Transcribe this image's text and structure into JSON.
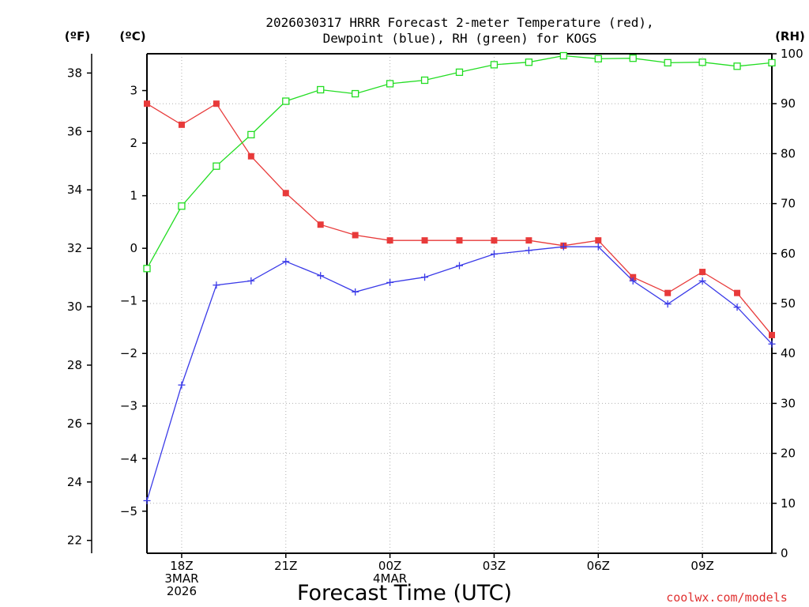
{
  "chart_data": {
    "type": "line",
    "title_lines": [
      "2026030317 HRRR Forecast 2-meter Temperature (red),",
      "Dewpoint (blue), RH (green) for KOGS"
    ],
    "left_outer_unit": "(ºF)",
    "left_inner_unit": "(ºC)",
    "right_unit": "(RH)",
    "xlabel": "Forecast Time (UTC)",
    "credit": "coolwx.com/models",
    "x_hours": [
      17,
      18,
      19,
      20,
      21,
      22,
      23,
      24,
      25,
      26,
      27,
      28,
      29,
      30,
      31,
      32,
      33,
      34,
      35
    ],
    "xlim": [
      17,
      35
    ],
    "x_ticks": [
      {
        "hour": 18,
        "lines": [
          "18Z",
          "3MAR",
          "2026"
        ]
      },
      {
        "hour": 21,
        "lines": [
          "21Z"
        ]
      },
      {
        "hour": 24,
        "lines": [
          "00Z",
          "4MAR"
        ]
      },
      {
        "hour": 27,
        "lines": [
          "03Z"
        ]
      },
      {
        "hour": 30,
        "lines": [
          "06Z"
        ]
      },
      {
        "hour": 33,
        "lines": [
          "09Z"
        ]
      }
    ],
    "celsius_axis": {
      "ylim": [
        -5.8,
        3.7
      ],
      "ticks": [
        3,
        2,
        1,
        0,
        -1,
        -2,
        -3,
        -4,
        -5
      ],
      "tick_labels": [
        "3",
        "2",
        "1",
        "0",
        "−1",
        "−2",
        "−3",
        "−4",
        "−5"
      ]
    },
    "fahrenheit_axis": {
      "ticks": [
        38,
        36,
        34,
        32,
        30,
        28,
        26,
        24,
        22
      ],
      "tick_labels": [
        "38",
        "36",
        "34",
        "32",
        "30",
        "28",
        "26",
        "24",
        "22"
      ]
    },
    "rh_axis": {
      "ylim": [
        0,
        100
      ],
      "ticks": [
        100,
        90,
        80,
        70,
        60,
        50,
        40,
        30,
        20,
        10,
        0
      ],
      "tick_labels": [
        "100",
        "90",
        "80",
        "70",
        "60",
        "50",
        "40",
        "30",
        "20",
        "10",
        "0"
      ]
    },
    "series": [
      {
        "name": "Temperature",
        "axis": "celsius",
        "color": "#e83a3a",
        "marker": "filled-square",
        "values": [
          2.75,
          2.35,
          2.75,
          1.75,
          1.05,
          0.45,
          0.25,
          0.15,
          0.15,
          0.15,
          0.15,
          0.15,
          0.05,
          0.15,
          -0.55,
          -0.85,
          -0.45,
          -0.85,
          -1.65
        ]
      },
      {
        "name": "Dewpoint",
        "axis": "celsius",
        "color": "#3a3ae8",
        "marker": "plus",
        "values": [
          -4.8,
          -2.6,
          -0.7,
          -0.62,
          -0.25,
          -0.52,
          -0.83,
          -0.65,
          -0.55,
          -0.33,
          -0.11,
          -0.04,
          0.03,
          0.03,
          -0.62,
          -1.06,
          -0.62,
          -1.12,
          -1.82
        ]
      },
      {
        "name": "RH",
        "axis": "rh",
        "color": "#22dd22",
        "marker": "open-square",
        "values": [
          57,
          69.5,
          77.5,
          83.8,
          90.5,
          92.8,
          92.0,
          94.0,
          94.7,
          96.3,
          97.8,
          98.3,
          99.6,
          99.0,
          99.1,
          98.2,
          98.3,
          97.5,
          98.2
        ]
      }
    ]
  }
}
